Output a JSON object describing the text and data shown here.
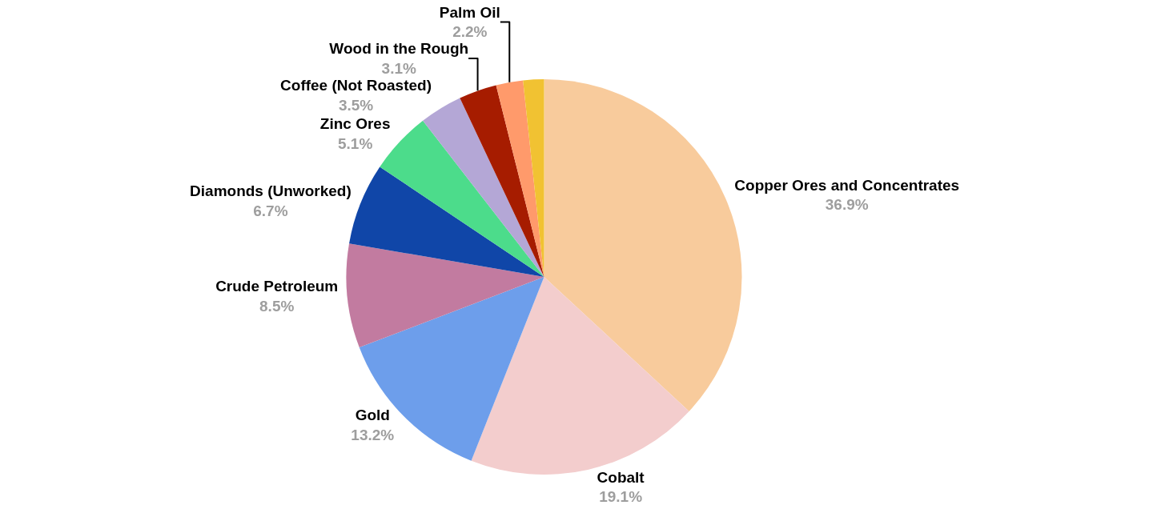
{
  "chart_data": {
    "type": "pie",
    "categories": [
      "Copper Ores and Concentrates",
      "Cobalt",
      "Gold",
      "Crude Petroleum",
      "Diamonds (Unworked)",
      "Zinc Ores",
      "Coffee (Not Roasted)",
      "Wood in the Rough",
      "Palm Oil",
      null
    ],
    "values": [
      36.9,
      19.1,
      13.2,
      8.5,
      6.7,
      5.1,
      3.5,
      3.1,
      2.2,
      1.7
    ],
    "value_labels": [
      "36.9%",
      "19.1%",
      "13.2%",
      "8.5%",
      "6.7%",
      "5.1%",
      "3.5%",
      "3.1%",
      "2.2%",
      null
    ],
    "colors": [
      "#f8cb9c",
      "#f3cdcd",
      "#6d9eeb",
      "#c27ba0",
      "#1046a8",
      "#4cdc8b",
      "#b4a7d6",
      "#a61c00",
      "#ff9a6b",
      "#f1c232"
    ],
    "legend": false
  }
}
